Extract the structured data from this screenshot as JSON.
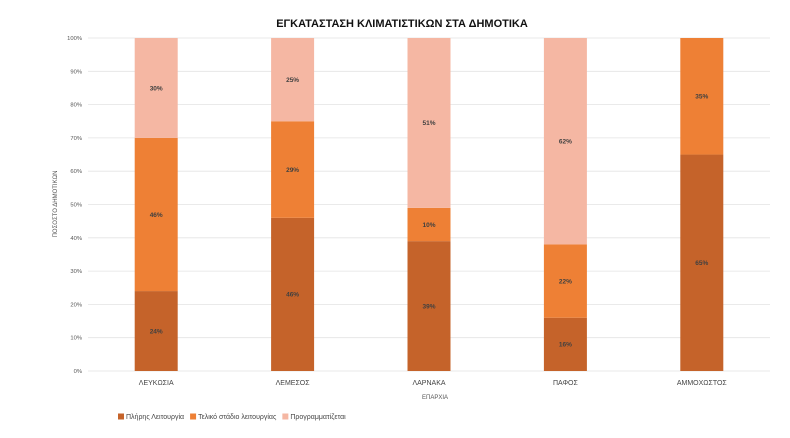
{
  "chart_data": {
    "type": "bar",
    "stacked": true,
    "title": "ΕΓΚΑΤΑΣΤΑΣΗ ΚΛΙΜΑΤΙΣΤΙΚΩΝ ΣΤΑ ΔΗΜΟΤΙΚΑ",
    "xlabel": "ΕΠΑΡΧΙΑ",
    "ylabel": "ΠΟΣΟΣΤΟ ΔΗΜΟΤΙΚΩΝ",
    "ylim": [
      0,
      100
    ],
    "yticks": [
      "0%",
      "10%",
      "20%",
      "30%",
      "40%",
      "50%",
      "60%",
      "70%",
      "80%",
      "90%",
      "100%"
    ],
    "categories": [
      "ΛΕΥΚΩΣΙΑ",
      "ΛΕΜΕΣΟΣ",
      "ΛΑΡΝΑΚΑ",
      "ΠΑΦΟΣ",
      "ΑΜΜΟΧΩΣΤΟΣ"
    ],
    "series": [
      {
        "name": "Πλήρης Λειτουργία",
        "color": "#C5632A",
        "values": [
          24,
          46,
          39,
          16,
          65
        ],
        "labels": [
          "24%",
          "46%",
          "39%",
          "16%",
          "65%"
        ]
      },
      {
        "name": "Τελικό στάδιο λειτουργίας",
        "color": "#EE8035",
        "values": [
          46,
          29,
          10,
          22,
          35
        ],
        "labels": [
          "46%",
          "29%",
          "10%",
          "22%",
          "35%"
        ]
      },
      {
        "name": "Προγραμματίζεται",
        "color": "#F5B7A3",
        "values": [
          30,
          25,
          51,
          62,
          0
        ],
        "labels": [
          "30%",
          "25%",
          "51%",
          "62%",
          ""
        ]
      }
    ],
    "gridlines": true,
    "legend_position": "bottom-left"
  }
}
